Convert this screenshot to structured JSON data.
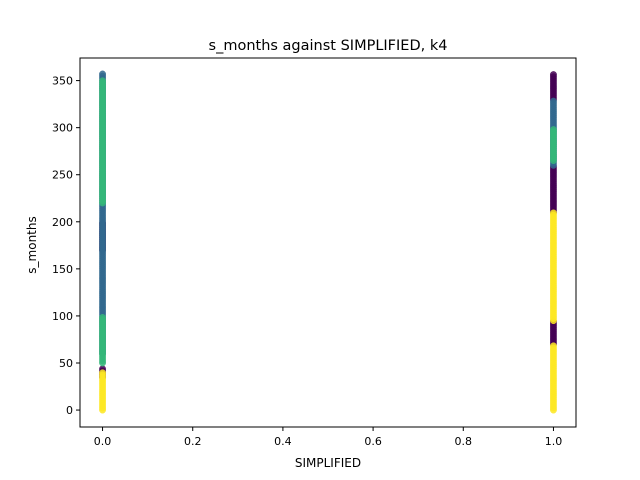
{
  "chart_data": {
    "type": "scatter",
    "title": "s_months against SIMPLIFIED, k4",
    "xlabel": "SIMPLIFIED",
    "ylabel": "s_months",
    "xlim": [
      -0.05,
      1.05
    ],
    "ylim": [
      -18,
      374
    ],
    "x_ticks": [
      0.0,
      0.2,
      0.4,
      0.6,
      0.8,
      1.0
    ],
    "x_tick_labels": [
      "0.0",
      "0.2",
      "0.4",
      "0.6",
      "0.8",
      "1.0"
    ],
    "y_ticks": [
      0,
      50,
      100,
      150,
      200,
      250,
      300,
      350
    ],
    "y_tick_labels": [
      "0",
      "50",
      "100",
      "150",
      "200",
      "250",
      "300",
      "350"
    ],
    "grid": false,
    "legend": "none",
    "colormap": "viridis",
    "cluster_colors": {
      "0": "#440154",
      "1": "#31688e",
      "2": "#35b779",
      "3": "#fde725"
    },
    "series": [
      {
        "cluster": 0,
        "color": "#440154",
        "segments": [
          {
            "x": 0,
            "y_from": 35,
            "y_to": 45
          },
          {
            "x": 0,
            "y_from": 170,
            "y_to": 200
          },
          {
            "x": 1,
            "y_from": 70,
            "y_to": 95
          },
          {
            "x": 1,
            "y_from": 210,
            "y_to": 260
          },
          {
            "x": 1,
            "y_from": 330,
            "y_to": 357
          }
        ]
      },
      {
        "cluster": 1,
        "color": "#31688e",
        "segments": [
          {
            "x": 0,
            "y_from": 60,
            "y_to": 357
          },
          {
            "x": 1,
            "y_from": 260,
            "y_to": 330
          }
        ]
      },
      {
        "cluster": 2,
        "color": "#35b779",
        "segments": [
          {
            "x": 0,
            "y_from": 50,
            "y_to": 100
          },
          {
            "x": 0,
            "y_from": 220,
            "y_to": 350
          },
          {
            "x": 1,
            "y_from": 265,
            "y_to": 300
          }
        ]
      },
      {
        "cluster": 3,
        "color": "#fde725",
        "segments": [
          {
            "x": 0,
            "y_from": 0,
            "y_to": 40
          },
          {
            "x": 1,
            "y_from": 0,
            "y_to": 70
          },
          {
            "x": 1,
            "y_from": 95,
            "y_to": 210
          }
        ]
      }
    ]
  }
}
